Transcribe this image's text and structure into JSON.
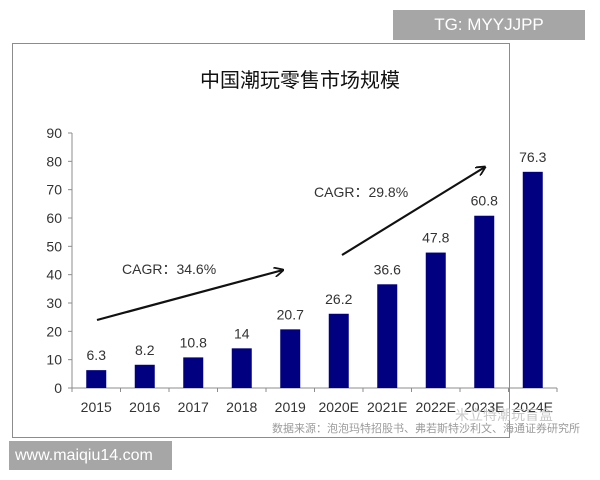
{
  "badges": {
    "tg": "TG: MYYJJPP",
    "site": "www.maiqiu14.com"
  },
  "colors": {
    "bar": "#000080",
    "axis": "#8c8c8c",
    "text": "#333333"
  },
  "source_note": "数据来源：泡泡玛特招股书、弗若斯特沙利文、海通证券研究所",
  "watermark": "米立特潮玩盲盒",
  "chart_data": {
    "type": "bar",
    "title": "中国潮玩零售市场规模",
    "xlabel": "",
    "ylabel": "",
    "categories": [
      "2015",
      "2016",
      "2017",
      "2018",
      "2019",
      "2020E",
      "2021E",
      "2022E",
      "2023E",
      "2024E"
    ],
    "values": [
      6.3,
      8.2,
      10.8,
      14,
      20.7,
      26.2,
      36.6,
      47.8,
      60.8,
      76.3
    ],
    "data_labels": [
      "6.3",
      "8.2",
      "10.8",
      "14",
      "20.7",
      "26.2",
      "36.6",
      "47.8",
      "60.8",
      "76.3"
    ],
    "ylim": [
      0,
      90
    ],
    "yticks": [
      0,
      10,
      20,
      30,
      40,
      50,
      60,
      70,
      80,
      90
    ],
    "grid": false,
    "legend": null,
    "annotations": [
      {
        "text": "CAGR：34.6%",
        "arrow_from": "2015",
        "arrow_to": "2019"
      },
      {
        "text": "CAGR：29.8%",
        "arrow_from": "2020E",
        "arrow_to": "2023E"
      }
    ]
  }
}
